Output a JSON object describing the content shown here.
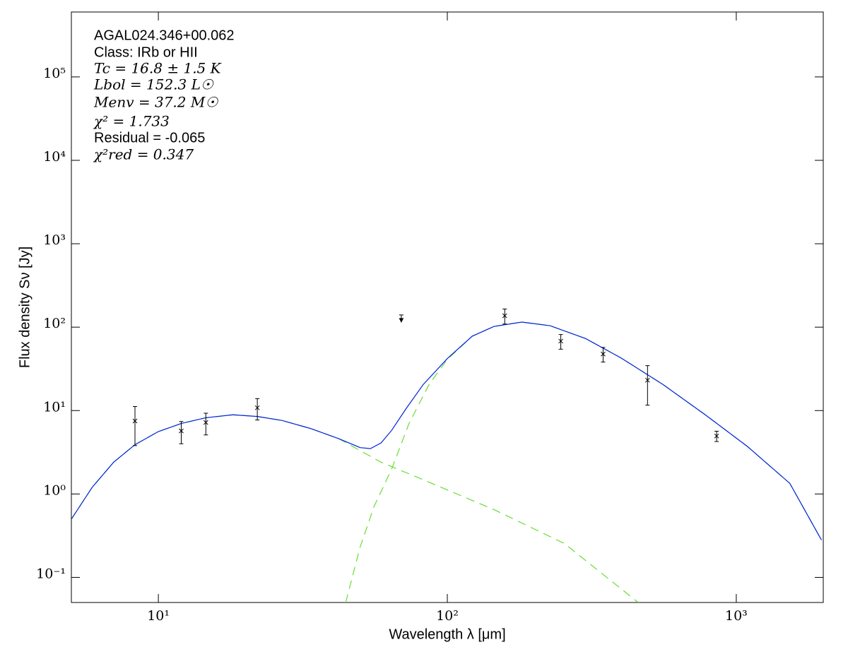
{
  "chart_data": {
    "type": "line",
    "xlabel": "Wavelength λ [μm]",
    "ylabel": "Flux density Sν [Jy]",
    "annotations": [
      "AGAL024.346+00.062",
      "Class: IRb or HII",
      "Tc = 16.8 ± 1.5 K",
      "Lbol = 152.3 L☉",
      "Menv = 37.2 M☉",
      "χ² = 1.733",
      "Residual = -0.065",
      "χ²red = 0.347"
    ],
    "xscale": "log",
    "yscale": "log",
    "xlim": [
      5,
      2000
    ],
    "ylim": [
      0.05,
      600000
    ],
    "xticks": [
      {
        "value": 10,
        "label": "10¹"
      },
      {
        "value": 100,
        "label": "10²"
      },
      {
        "value": 1000,
        "label": "10³"
      }
    ],
    "yticks": [
      {
        "value": 0.1,
        "label": "10⁻¹"
      },
      {
        "value": 1,
        "label": "10⁰"
      },
      {
        "value": 10,
        "label": "10¹"
      },
      {
        "value": 100,
        "label": "10²"
      },
      {
        "value": 1000,
        "label": "10³"
      },
      {
        "value": 10000,
        "label": "10⁴"
      },
      {
        "value": 100000,
        "label": "10⁵"
      }
    ],
    "series": [
      {
        "color": "#66dd33",
        "style": "dashed",
        "x": [
          5,
          5.9,
          7,
          8.3,
          10,
          12,
          14.6,
          18.1,
          22,
          26.8,
          33.6,
          42.1,
          59,
          82.6,
          145,
          254,
          458
        ],
        "values": [
          0.5,
          1.2,
          2.4,
          3.9,
          5.6,
          7.0,
          8.2,
          8.9,
          8.5,
          7.6,
          6.1,
          4.6,
          2.4,
          1.48,
          0.65,
          0.255,
          0.05
        ]
      },
      {
        "color": "#66dd33",
        "style": "dashed",
        "x": [
          44.5,
          49.9,
          55.7,
          64.2,
          73.7,
          86.5,
          100,
          122,
          145,
          181,
          227,
          301,
          398,
          557,
          781,
          1094,
          1532,
          1972
        ],
        "values": [
          0.05,
          0.23,
          0.7,
          2.0,
          7,
          20.6,
          41,
          78,
          102,
          115,
          104,
          73,
          43,
          20.6,
          8.9,
          3.7,
          1.34,
          0.28
        ]
      },
      {
        "color": "#0022dd",
        "style": "solid",
        "x": [
          5,
          5.9,
          7,
          8.3,
          10,
          12,
          14.6,
          18.1,
          22,
          26.8,
          33.6,
          42.1,
          49.9,
          54.2,
          59,
          64.2,
          71.8,
          82.6,
          100,
          122,
          145,
          181,
          227,
          301,
          398,
          557,
          781,
          1094,
          1532,
          1972
        ],
        "values": [
          0.5,
          1.2,
          2.4,
          3.9,
          5.6,
          7.0,
          8.2,
          8.9,
          8.5,
          7.6,
          6.1,
          4.6,
          3.6,
          3.5,
          4.1,
          5.8,
          10.4,
          20.6,
          42,
          78,
          102,
          115,
          104,
          73,
          43,
          20.6,
          8.9,
          3.7,
          1.34,
          0.28
        ]
      }
    ],
    "points": {
      "color": "#000000",
      "x": [
        8.3,
        12,
        14.6,
        22,
        158,
        247,
        346,
        493,
        855
      ],
      "values": [
        7.5,
        5.7,
        7.2,
        10.8,
        137,
        68,
        47.6,
        23.1,
        4.95
      ],
      "errors": [
        3.7,
        1.7,
        2.1,
        3.1,
        28,
        13.6,
        9.5,
        11.5,
        0.7
      ]
    },
    "upper_limits": {
      "color": "#000000",
      "x": [
        69.3
      ],
      "values": [
        140
      ]
    }
  }
}
